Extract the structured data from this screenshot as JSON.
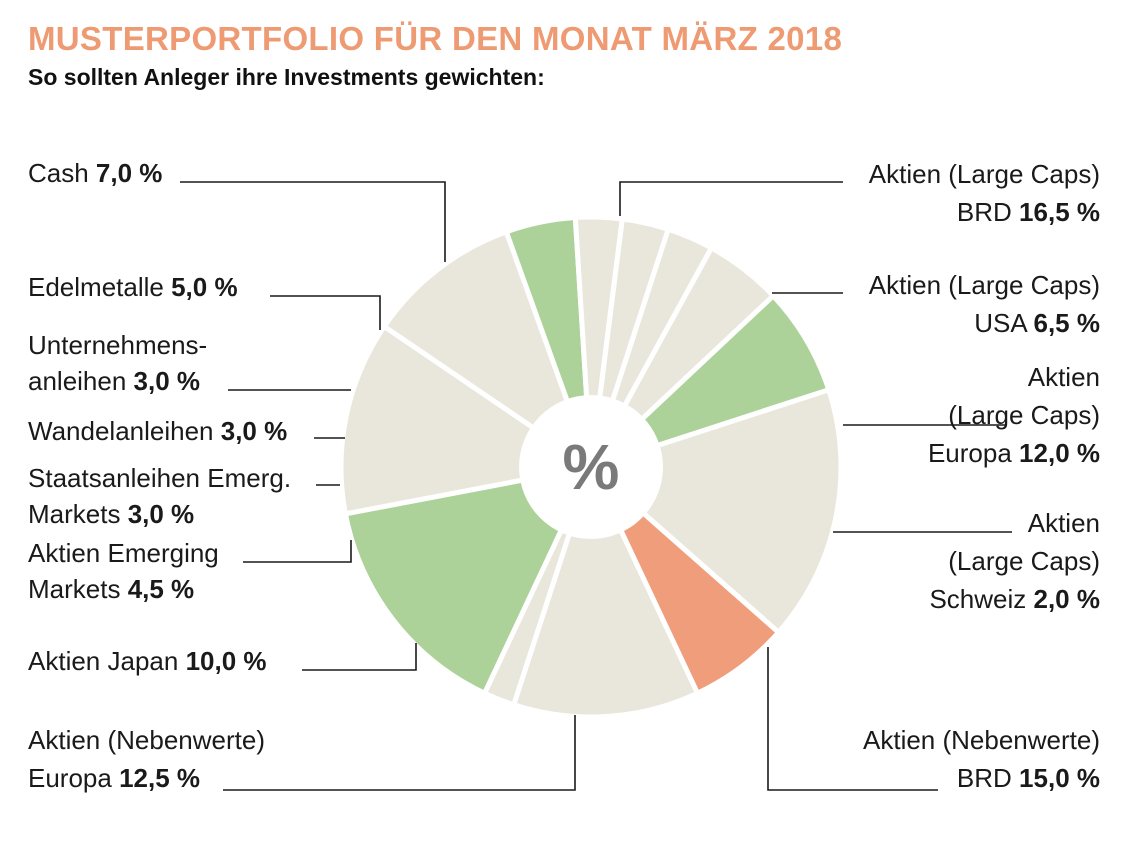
{
  "title": "MUSTERPORTFOLIO FÜR DEN MONAT MÄRZ 2018",
  "subtitle": "So sollten Anleger ihre Investments gewichten:",
  "colors": {
    "title": "#ee9a72",
    "segment_default": "#e9e7dc",
    "segment_green": "#acd29a",
    "segment_orange": "#ef9d7a",
    "separator": "#ffffff"
  },
  "chart_data": {
    "type": "pie",
    "title": "MUSTERPORTFOLIO FÜR DEN MONAT MÄRZ 2018",
    "subtitle": "So sollten Anleger ihre Investments gewichten:",
    "center_label": "%",
    "unit": "%",
    "slices": [
      {
        "label_lines": [
          "Aktien (Large Caps)",
          "BRD"
        ],
        "value_text": "16,5 %",
        "value": 16.5,
        "color": "#e9e7dc"
      },
      {
        "label_lines": [
          "Aktien (Large Caps)",
          "USA"
        ],
        "value_text": "6,5 %",
        "value": 6.5,
        "color": "#ef9d7a"
      },
      {
        "label_lines": [
          "Aktien",
          "(Large Caps)",
          "Europa"
        ],
        "value_text": "12,0 %",
        "value": 12.0,
        "color": "#e9e7dc"
      },
      {
        "label_lines": [
          "Aktien",
          "(Large Caps)",
          "Schweiz"
        ],
        "value_text": "2,0 %",
        "value": 2.0,
        "color": "#e9e7dc"
      },
      {
        "label_lines": [
          "Aktien (Nebenwerte)",
          "BRD"
        ],
        "value_text": "15,0 %",
        "value": 15.0,
        "color": "#acd29a"
      },
      {
        "label_lines": [
          "Aktien (Nebenwerte)",
          "Europa"
        ],
        "value_text": "12,5 %",
        "value": 12.5,
        "color": "#e9e7dc"
      },
      {
        "label_lines": [
          "Aktien Japan"
        ],
        "value_text": "10,0 %",
        "value": 10.0,
        "color": "#e9e7dc"
      },
      {
        "label_lines": [
          "Aktien Emerging",
          "Markets"
        ],
        "value_text": "4,5 %",
        "value": 4.5,
        "color": "#acd29a"
      },
      {
        "label_lines": [
          "Staatsanleihen Emerg.",
          "Markets"
        ],
        "value_text": "3,0 %",
        "value": 3.0,
        "color": "#e9e7dc"
      },
      {
        "label_lines": [
          "Wandelanleihen"
        ],
        "value_text": "3,0 %",
        "value": 3.0,
        "color": "#e9e7dc"
      },
      {
        "label_lines": [
          "Unternehmens-",
          "anleihen"
        ],
        "value_text": "3,0 %",
        "value": 3.0,
        "color": "#e9e7dc"
      },
      {
        "label_lines": [
          "Edelmetalle"
        ],
        "value_text": "5,0 %",
        "value": 5.0,
        "color": "#e9e7dc"
      },
      {
        "label_lines": [
          "Cash"
        ],
        "value_text": "7,0 %",
        "value": 7.0,
        "color": "#acd29a"
      }
    ]
  }
}
